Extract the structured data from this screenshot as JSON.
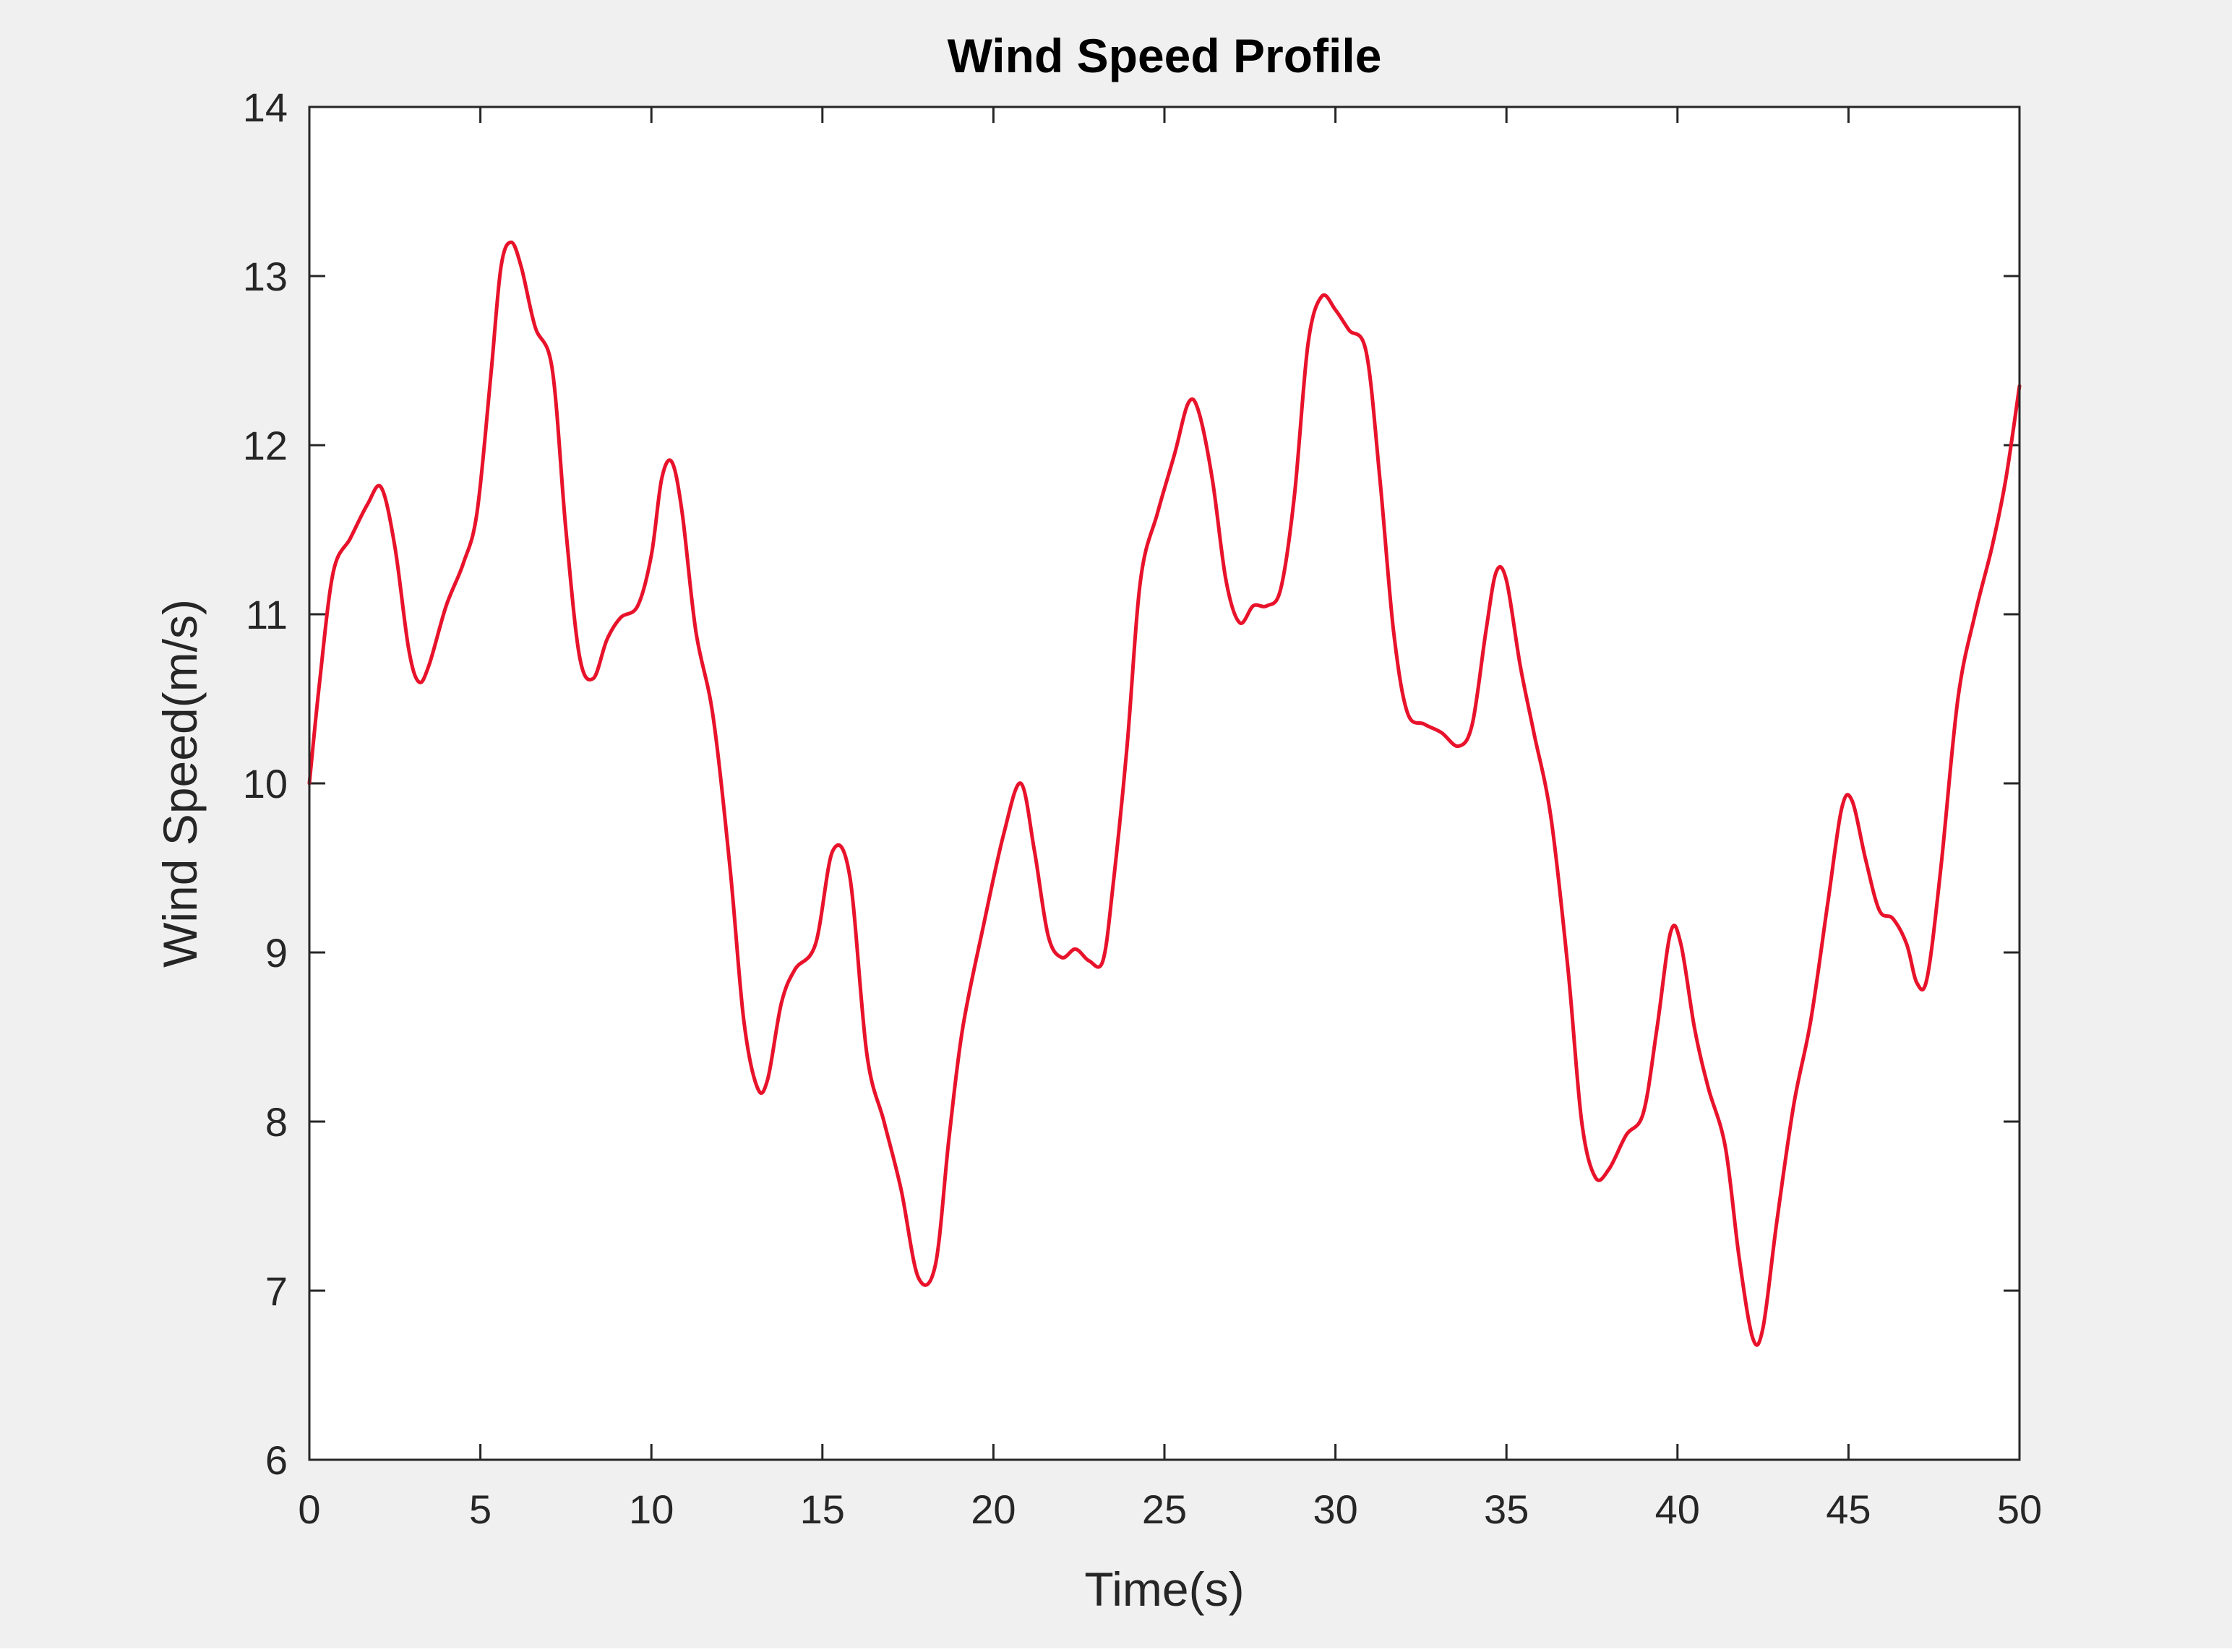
{
  "chart_data": {
    "type": "line",
    "title": "Wind Speed Profile",
    "xlabel": "Time(s)",
    "ylabel": "Wind Speed(m/s)",
    "xlim": [
      0,
      50
    ],
    "ylim": [
      6,
      14
    ],
    "xticks": [
      0,
      5,
      10,
      15,
      20,
      25,
      30,
      35,
      40,
      45,
      50
    ],
    "yticks": [
      6,
      7,
      8,
      9,
      10,
      11,
      12,
      13,
      14
    ],
    "grid": false,
    "legend": "none",
    "series": [
      {
        "color": "#e8132b",
        "x": [
          0,
          0.3,
          0.7,
          1.2,
          1.7,
          2.1,
          2.5,
          2.9,
          3.2,
          3.5,
          4.0,
          4.5,
          4.9,
          5.3,
          5.6,
          5.9,
          6.2,
          6.6,
          7.1,
          7.5,
          7.9,
          8.3,
          8.7,
          9.1,
          9.6,
          10.0,
          10.3,
          10.6,
          10.9,
          11.3,
          11.8,
          12.3,
          12.7,
          13.1,
          13.4,
          13.8,
          14.2,
          14.8,
          15.3,
          15.8,
          16.3,
          16.8,
          17.3,
          17.8,
          18.3,
          18.7,
          19.1,
          19.7,
          20.3,
          20.8,
          21.2,
          21.6,
          22.0,
          22.4,
          22.8,
          23.2,
          23.5,
          23.9,
          24.3,
          24.8,
          25.3,
          25.7,
          26.0,
          26.4,
          26.8,
          27.2,
          27.6,
          28.0,
          28.4,
          28.8,
          29.2,
          29.6,
          30.0,
          30.4,
          30.9,
          31.3,
          31.7,
          32.1,
          32.6,
          33.1,
          33.6,
          34.0,
          34.4,
          34.7,
          35.0,
          35.4,
          35.8,
          36.3,
          36.8,
          37.2,
          37.6,
          38.0,
          38.5,
          39.0,
          39.4,
          39.8,
          40.1,
          40.5,
          40.9,
          41.4,
          41.8,
          42.2,
          42.5,
          42.9,
          43.4,
          43.9,
          44.4,
          44.8,
          45.1,
          45.5,
          45.9,
          46.3,
          46.7,
          47.0,
          47.3,
          47.7,
          48.2,
          48.7,
          49.2,
          49.6,
          50.0
        ],
        "y": [
          10.0,
          10.6,
          11.25,
          11.45,
          11.65,
          11.75,
          11.4,
          10.8,
          10.6,
          10.7,
          11.05,
          11.3,
          11.6,
          12.4,
          13.05,
          13.2,
          13.05,
          12.7,
          12.45,
          11.5,
          10.75,
          10.62,
          10.85,
          10.98,
          11.05,
          11.35,
          11.8,
          11.9,
          11.6,
          10.9,
          10.4,
          9.5,
          8.6,
          8.2,
          8.25,
          8.7,
          8.9,
          9.05,
          9.6,
          9.45,
          8.4,
          8.0,
          7.6,
          7.08,
          7.15,
          7.9,
          8.55,
          9.15,
          9.7,
          10.0,
          9.6,
          9.1,
          8.97,
          9.02,
          8.95,
          8.95,
          9.4,
          10.2,
          11.2,
          11.6,
          11.95,
          12.25,
          12.2,
          11.8,
          11.2,
          10.95,
          11.05,
          11.05,
          11.15,
          11.7,
          12.6,
          12.88,
          12.8,
          12.68,
          12.55,
          11.8,
          10.9,
          10.42,
          10.35,
          10.3,
          10.22,
          10.35,
          10.9,
          11.25,
          11.2,
          10.7,
          10.3,
          9.8,
          8.9,
          8.0,
          7.67,
          7.72,
          7.92,
          8.05,
          8.55,
          9.12,
          9.05,
          8.55,
          8.2,
          7.85,
          7.2,
          6.72,
          6.78,
          7.4,
          8.1,
          8.6,
          9.3,
          9.85,
          9.9,
          9.55,
          9.25,
          9.2,
          9.05,
          8.82,
          8.85,
          9.5,
          10.5,
          11.0,
          11.4,
          11.8,
          12.35
        ]
      }
    ]
  }
}
